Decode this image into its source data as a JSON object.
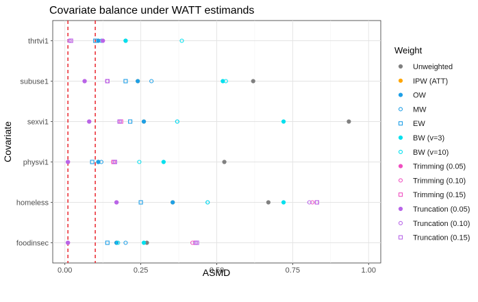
{
  "chart_data": {
    "type": "scatter",
    "title": "Covariate balance under WATT estimands",
    "xlabel": "ASMD",
    "ylabel": "Covariate",
    "xlim": [
      -0.04,
      1.04
    ],
    "x_ticks": [
      0,
      0.25,
      0.5,
      0.75,
      1.0
    ],
    "x_tick_labels": [
      "0.00",
      "0.25",
      "0.50",
      "0.75",
      "1.00"
    ],
    "reference_lines": [
      0.01,
      0.1
    ],
    "reference_line_style": "dashed red",
    "grid": true,
    "legend_position": "right",
    "legend_title": "Weight",
    "categories": [
      "thrtvi1",
      "subuse1",
      "sexvi1",
      "physvi1",
      "homeless",
      "foodinsec"
    ],
    "series": [
      {
        "name": "Unweighted",
        "color": "#808080",
        "shape": "circle-filled",
        "values": [
          0.2,
          0.62,
          0.935,
          0.525,
          0.67,
          0.27
        ]
      },
      {
        "name": "IPW (ATT)",
        "color": "#FFA500",
        "shape": "circle-filled",
        "values": [
          0.11,
          0.24,
          0.26,
          0.11,
          0.355,
          0.17
        ]
      },
      {
        "name": "OW",
        "color": "#1E9FE6",
        "shape": "circle-filled",
        "values": [
          0.11,
          0.24,
          0.26,
          0.11,
          0.355,
          0.17
        ]
      },
      {
        "name": "MW",
        "color": "#1E9FE6",
        "shape": "circle-open",
        "values": [
          0.12,
          0.285,
          0.37,
          0.12,
          0.47,
          0.2
        ]
      },
      {
        "name": "EW",
        "color": "#1E9FE6",
        "shape": "square-open",
        "values": [
          0.1,
          0.2,
          0.215,
          0.09,
          0.25,
          0.14
        ]
      },
      {
        "name": "BW (v=3)",
        "color": "#00E0EE",
        "shape": "circle-filled",
        "values": [
          0.2,
          0.52,
          0.72,
          0.325,
          0.72,
          0.26
        ]
      },
      {
        "name": "BW (v=10)",
        "color": "#00E0EE",
        "shape": "circle-open",
        "values": [
          0.385,
          0.53,
          0.37,
          0.245,
          0.47,
          0.175
        ]
      },
      {
        "name": "Trimming (0.05)",
        "color": "#F04FC0",
        "shape": "circle-filled",
        "values": [
          0.125,
          0.065,
          0.08,
          0.01,
          0.17,
          0.01
        ]
      },
      {
        "name": "Trimming (0.10)",
        "color": "#F04FC0",
        "shape": "circle-open",
        "values": [
          0.015,
          0.14,
          0.18,
          0.16,
          0.815,
          0.42
        ]
      },
      {
        "name": "Trimming (0.15)",
        "color": "#F04FC0",
        "shape": "square-open",
        "values": [
          0.02,
          0.14,
          0.185,
          0.16,
          0.83,
          0.43
        ]
      },
      {
        "name": "Truncation (0.05)",
        "color": "#B865E8",
        "shape": "circle-filled",
        "values": [
          0.125,
          0.065,
          0.08,
          0.01,
          0.17,
          0.01
        ]
      },
      {
        "name": "Truncation (0.10)",
        "color": "#B865E8",
        "shape": "circle-open",
        "values": [
          0.015,
          0.14,
          0.18,
          0.165,
          0.805,
          0.43
        ]
      },
      {
        "name": "Truncation (0.15)",
        "color": "#B865E8",
        "shape": "square-open",
        "values": [
          0.02,
          0.14,
          0.18,
          0.165,
          0.83,
          0.435
        ]
      }
    ]
  }
}
